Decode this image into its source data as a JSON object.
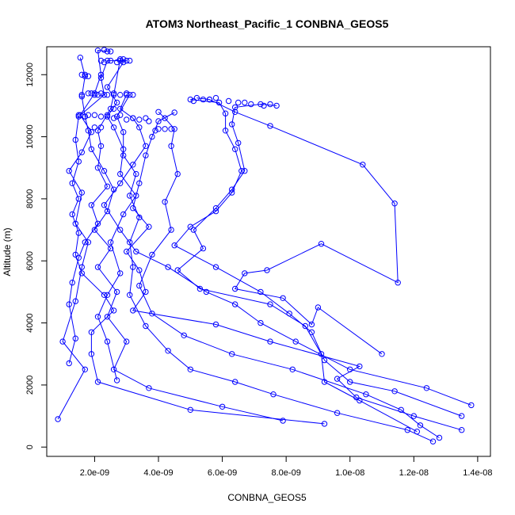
{
  "chart_data": {
    "type": "line",
    "title": "ATOM3 Northeast_Pacific_1 CONBNA_GEOS5",
    "xlabel": "CONBNA_GEOS5",
    "ylabel": "Altitude (m)",
    "xlim": [
      5e-10,
      1.44e-08
    ],
    "ylim": [
      -300,
      12900
    ],
    "x_ticks": [
      {
        "value": 2e-09,
        "label": "2.0e-09"
      },
      {
        "value": 4e-09,
        "label": "4.0e-09"
      },
      {
        "value": 6e-09,
        "label": "6.0e-09"
      },
      {
        "value": 8e-09,
        "label": "8.0e-09"
      },
      {
        "value": 1e-08,
        "label": "1.0e-08"
      },
      {
        "value": 1.2e-08,
        "label": "1.2e-08"
      },
      {
        "value": 1.4e-08,
        "label": "1.4e-08"
      }
    ],
    "y_ticks": [
      {
        "value": 0,
        "label": "0"
      },
      {
        "value": 2000,
        "label": "2000"
      },
      {
        "value": 4000,
        "label": "4000"
      },
      {
        "value": 6000,
        "label": "6000"
      },
      {
        "value": 8000,
        "label": "8000"
      },
      {
        "value": 10000,
        "label": "10000"
      },
      {
        "value": 12000,
        "label": "12000"
      }
    ],
    "grid": false,
    "series_color": "#0000ff",
    "series": [
      {
        "points": [
          [
            7.9e-09,
            850
          ],
          [
            6e-09,
            1300
          ],
          [
            3.7e-09,
            1900
          ],
          [
            2.6e-09,
            2500
          ],
          [
            3e-09,
            3400
          ],
          [
            2.4e-09,
            4200
          ],
          [
            2.7e-09,
            5000
          ],
          [
            2.1e-09,
            5800
          ],
          [
            2.5e-09,
            6400
          ],
          [
            2e-09,
            7000
          ],
          [
            2.4e-09,
            7600
          ],
          [
            2.6e-09,
            8300
          ],
          [
            2.3e-09,
            8900
          ],
          [
            1.9e-09,
            9600
          ],
          [
            1.8e-09,
            10200
          ],
          [
            1.7e-09,
            10650
          ],
          [
            1.6e-09,
            11300
          ],
          [
            1.7e-09,
            11950
          ],
          [
            1.55e-09,
            12550
          ]
        ]
      },
      {
        "points": [
          [
            9.2e-09,
            750
          ],
          [
            5e-09,
            1200
          ],
          [
            2.1e-09,
            2100
          ],
          [
            1.9e-09,
            3000
          ],
          [
            1.9e-09,
            3700
          ],
          [
            2.6e-09,
            4400
          ],
          [
            2.3e-09,
            4900
          ],
          [
            1.6e-09,
            5600
          ],
          [
            1.4e-09,
            6200
          ],
          [
            1.5e-09,
            6900
          ],
          [
            1.3e-09,
            7500
          ],
          [
            1.5e-09,
            8000
          ],
          [
            1.3e-09,
            8500
          ],
          [
            1.5e-09,
            9200
          ],
          [
            1.4e-09,
            9900
          ],
          [
            1.5e-09,
            10650
          ],
          [
            2.3e-09,
            11350
          ],
          [
            2.2e-09,
            11900
          ],
          [
            2.4e-09,
            12450
          ],
          [
            3e-09,
            12450
          ]
        ]
      },
      {
        "points": [
          [
            8.5e-10,
            900
          ],
          [
            1.7e-09,
            2500
          ],
          [
            1e-09,
            3400
          ],
          [
            1.4e-09,
            4700
          ],
          [
            1.6e-09,
            5800
          ],
          [
            1.8e-09,
            6600
          ],
          [
            1.4e-09,
            7200
          ],
          [
            1.6e-09,
            8200
          ],
          [
            1.2e-09,
            8900
          ],
          [
            1.6e-09,
            9500
          ],
          [
            1.9e-09,
            10150
          ],
          [
            1.55e-09,
            10700
          ],
          [
            2e-09,
            11400
          ],
          [
            2.2e-09,
            12000
          ],
          [
            2.1e-09,
            12780
          ],
          [
            2.5e-09,
            12750
          ]
        ]
      },
      {
        "points": [
          [
            1.35e-08,
            550
          ],
          [
            1.2e-08,
            1000
          ],
          [
            1.02e-08,
            1600
          ],
          [
            9.6e-09,
            2200
          ],
          [
            1.03e-08,
            2600
          ],
          [
            7.5e-09,
            3400
          ],
          [
            5.8e-09,
            3950
          ],
          [
            3.2e-09,
            4400
          ],
          [
            3.6e-09,
            5000
          ],
          [
            3.4e-09,
            5700
          ],
          [
            3e-09,
            6300
          ],
          [
            3.7e-09,
            7100
          ],
          [
            3.2e-09,
            7700
          ],
          [
            3.4e-09,
            8500
          ],
          [
            3.6e-09,
            9400
          ],
          [
            3.8e-09,
            10000
          ],
          [
            4e-09,
            10500
          ],
          [
            4.5e-09,
            10780
          ]
        ]
      },
      {
        "points": [
          [
            1.38e-08,
            1350
          ],
          [
            1.24e-08,
            1900
          ],
          [
            1e-08,
            2500
          ],
          [
            8.3e-09,
            3400
          ],
          [
            7.2e-09,
            4000
          ],
          [
            6.4e-09,
            4600
          ],
          [
            5.5e-09,
            5000
          ],
          [
            4.3e-09,
            5800
          ],
          [
            3.3e-09,
            6300
          ],
          [
            2.8e-09,
            7000
          ],
          [
            2.3e-09,
            7800
          ],
          [
            2.8e-09,
            8500
          ],
          [
            3.2e-09,
            9100
          ],
          [
            3.6e-09,
            9700
          ],
          [
            3.4e-09,
            10300
          ],
          [
            3.2e-09,
            10600
          ],
          [
            2.8e-09,
            10900
          ],
          [
            3e-09,
            11350
          ]
        ]
      },
      {
        "points": [
          [
            1.35e-08,
            1000
          ],
          [
            1.14e-08,
            1800
          ],
          [
            1e-08,
            2100
          ],
          [
            9.2e-09,
            2800
          ],
          [
            8.8e-09,
            3700
          ],
          [
            8.1e-09,
            4300
          ],
          [
            7.2e-09,
            5000
          ],
          [
            5.8e-09,
            5800
          ],
          [
            4.5e-09,
            6500
          ],
          [
            5e-09,
            7100
          ],
          [
            5.8e-09,
            7600
          ],
          [
            6.3e-09,
            8200
          ],
          [
            6.6e-09,
            8900
          ],
          [
            6.4e-09,
            9600
          ],
          [
            6.1e-09,
            10200
          ],
          [
            6.1e-09,
            10750
          ],
          [
            5.9e-09,
            11100
          ],
          [
            5e-09,
            11200
          ]
        ]
      },
      {
        "points": [
          [
            1.21e-08,
            500
          ],
          [
            1.03e-08,
            1500
          ],
          [
            9.2e-09,
            2100
          ],
          [
            9.1e-09,
            3000
          ],
          [
            8.6e-09,
            3900
          ],
          [
            7.5e-09,
            4600
          ],
          [
            5.3e-09,
            5100
          ],
          [
            4.6e-09,
            5700
          ],
          [
            5.4e-09,
            6400
          ],
          [
            5.1e-09,
            7000
          ],
          [
            5.8e-09,
            7700
          ],
          [
            6.3e-09,
            8300
          ],
          [
            6.7e-09,
            8900
          ],
          [
            6.5e-09,
            9800
          ],
          [
            6.3e-09,
            10400
          ],
          [
            6.4e-09,
            10950
          ],
          [
            7.2e-09,
            11050
          ],
          [
            7.7e-09,
            11000
          ]
        ]
      },
      {
        "points": [
          [
            1.28e-08,
            300
          ],
          [
            1.22e-08,
            700
          ],
          [
            1.16e-08,
            1200
          ],
          [
            1.05e-08,
            1700
          ],
          [
            8.2e-09,
            2500
          ],
          [
            6.3e-09,
            3000
          ],
          [
            4.8e-09,
            3600
          ],
          [
            3.8e-09,
            4300
          ],
          [
            3.4e-09,
            5200
          ],
          [
            3.8e-09,
            6200
          ],
          [
            4.4e-09,
            7000
          ],
          [
            4.2e-09,
            7900
          ],
          [
            4.6e-09,
            8800
          ],
          [
            4.4e-09,
            9700
          ],
          [
            4.5e-09,
            10250
          ],
          [
            4.2e-09,
            10600
          ],
          [
            4e-09,
            10800
          ]
        ]
      },
      {
        "points": [
          [
            1.26e-08,
            180
          ],
          [
            1.18e-08,
            550
          ],
          [
            9.6e-09,
            1100
          ],
          [
            7.6e-09,
            1700
          ],
          [
            6.4e-09,
            2100
          ],
          [
            5e-09,
            2500
          ],
          [
            4.3e-09,
            3100
          ],
          [
            3.6e-09,
            3900
          ],
          [
            3.1e-09,
            4900
          ],
          [
            3.2e-09,
            5800
          ],
          [
            3.1e-09,
            6600
          ],
          [
            3.4e-09,
            7400
          ],
          [
            3.1e-09,
            8100
          ],
          [
            3.3e-09,
            8800
          ],
          [
            2.9e-09,
            9400
          ],
          [
            2.9e-09,
            10150
          ],
          [
            2.7e-09,
            10650
          ],
          [
            3.1e-09,
            11350
          ]
        ]
      },
      {
        "points": [
          [
            1.1e-08,
            3000
          ],
          [
            9e-09,
            4500
          ],
          [
            8.8e-09,
            3950
          ],
          [
            7.9e-09,
            4800
          ],
          [
            6.4e-09,
            5100
          ],
          [
            6.7e-09,
            5600
          ],
          [
            7.4e-09,
            5700
          ],
          [
            9.1e-09,
            6550
          ],
          [
            1.15e-08,
            5300
          ],
          [
            1.14e-08,
            7850
          ],
          [
            1.04e-08,
            9100
          ],
          [
            7.5e-09,
            10350
          ],
          [
            6.4e-09,
            10800
          ],
          [
            5.6e-09,
            11200
          ],
          [
            5.2e-09,
            11250
          ]
        ]
      },
      {
        "points": [
          [
            2.7e-09,
            2150
          ],
          [
            2.4e-09,
            3400
          ],
          [
            2.1e-09,
            4200
          ],
          [
            2.4e-09,
            4900
          ],
          [
            2.8e-09,
            5600
          ],
          [
            2.5e-09,
            6600
          ],
          [
            2.9e-09,
            7500
          ],
          [
            3.3e-09,
            8100
          ],
          [
            2.8e-09,
            8800
          ],
          [
            2.9e-09,
            9600
          ],
          [
            2.6e-09,
            10300
          ],
          [
            2.4e-09,
            10650
          ],
          [
            2.7e-09,
            11100
          ],
          [
            2.4e-09,
            11600
          ],
          [
            2.9e-09,
            12400
          ]
        ]
      },
      {
        "points": [
          [
            1.2e-09,
            2700
          ],
          [
            1.4e-09,
            3500
          ],
          [
            1.2e-09,
            4600
          ],
          [
            1.3e-09,
            5300
          ],
          [
            1.5e-09,
            6100
          ],
          [
            1.7e-09,
            6600
          ],
          [
            2.1e-09,
            7200
          ],
          [
            1.9e-09,
            7800
          ],
          [
            2.4e-09,
            8400
          ],
          [
            2.1e-09,
            9000
          ],
          [
            2.2e-09,
            9700
          ],
          [
            2.1e-09,
            10200
          ],
          [
            2.5e-09,
            10900
          ],
          [
            2.6e-09,
            11350
          ],
          [
            2.8e-09,
            12500
          ]
        ]
      }
    ],
    "cluster_points": [
      [
        1.8e-09,
        10700
      ],
      [
        2e-09,
        10700
      ],
      [
        2.2e-09,
        10650
      ],
      [
        2.4e-09,
        10700
      ],
      [
        2.6e-09,
        10600
      ],
      [
        2.8e-09,
        10700
      ],
      [
        3e-09,
        10550
      ],
      [
        3.2e-09,
        10600
      ],
      [
        3.4e-09,
        10550
      ],
      [
        3.6e-09,
        10600
      ],
      [
        1.6e-09,
        11350
      ],
      [
        1.8e-09,
        11400
      ],
      [
        2e-09,
        11350
      ],
      [
        2.2e-09,
        11400
      ],
      [
        2.4e-09,
        11350
      ],
      [
        2.6e-09,
        11400
      ],
      [
        2.8e-09,
        11350
      ],
      [
        3.2e-09,
        11350
      ],
      [
        1.9e-09,
        11400
      ],
      [
        2.1e-09,
        11350
      ],
      [
        2.3e-09,
        12400
      ],
      [
        2.5e-09,
        12450
      ],
      [
        2.7e-09,
        12400
      ],
      [
        2.9e-09,
        12500
      ],
      [
        2.2e-09,
        12450
      ],
      [
        2.4e-09,
        12750
      ],
      [
        2.3e-09,
        12800
      ],
      [
        1.7e-09,
        12000
      ],
      [
        1.6e-09,
        12000
      ],
      [
        1.8e-09,
        11950
      ],
      [
        4.2e-09,
        10250
      ],
      [
        4.4e-09,
        10250
      ],
      [
        3.9e-09,
        10200
      ],
      [
        4e-09,
        10250
      ],
      [
        3.7e-09,
        10500
      ],
      [
        5.1e-09,
        11150
      ],
      [
        5.4e-09,
        11200
      ],
      [
        5.8e-09,
        11250
      ],
      [
        6.2e-09,
        11150
      ],
      [
        6.5e-09,
        11100
      ],
      [
        6.9e-09,
        11050
      ],
      [
        7.3e-09,
        11000
      ],
      [
        7.5e-09,
        11050
      ],
      [
        6.7e-09,
        11100
      ],
      [
        5.6e-09,
        11200
      ],
      [
        2e-09,
        10300
      ],
      [
        2.2e-09,
        10300
      ],
      [
        1.7e-09,
        10650
      ],
      [
        1.5e-09,
        10700
      ],
      [
        2.6e-09,
        10900
      ],
      [
        3e-09,
        11400
      ],
      [
        2.8e-09,
        12450
      ],
      [
        3.1e-09,
        12450
      ]
    ]
  }
}
